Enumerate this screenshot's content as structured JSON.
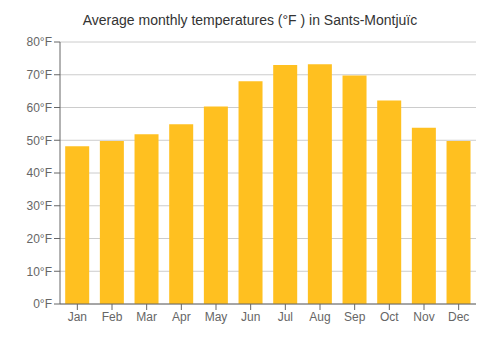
{
  "chart_data": {
    "type": "bar",
    "title": "Average monthly temperatures (°F ) in Sants-Montjuïc",
    "categories": [
      "Jan",
      "Feb",
      "Mar",
      "Apr",
      "May",
      "Jun",
      "Jul",
      "Aug",
      "Sep",
      "Oct",
      "Nov",
      "Dec"
    ],
    "values": [
      48.2,
      49.8,
      51.8,
      54.9,
      60.3,
      68.0,
      73.0,
      73.2,
      69.8,
      62.1,
      53.8,
      49.8
    ],
    "color": "#FFC020",
    "ylim": [
      0,
      80
    ],
    "yticks": [
      {
        "value": 0,
        "label": "0°F"
      },
      {
        "value": 10,
        "label": "10°F"
      },
      {
        "value": 20,
        "label": "20°F"
      },
      {
        "value": 30,
        "label": "30°F"
      },
      {
        "value": 40,
        "label": "40°F"
      },
      {
        "value": 50,
        "label": "50°F"
      },
      {
        "value": 60,
        "label": "60°F"
      },
      {
        "value": 70,
        "label": "70°F"
      },
      {
        "value": 80,
        "label": "80°F"
      }
    ],
    "grid": true
  }
}
